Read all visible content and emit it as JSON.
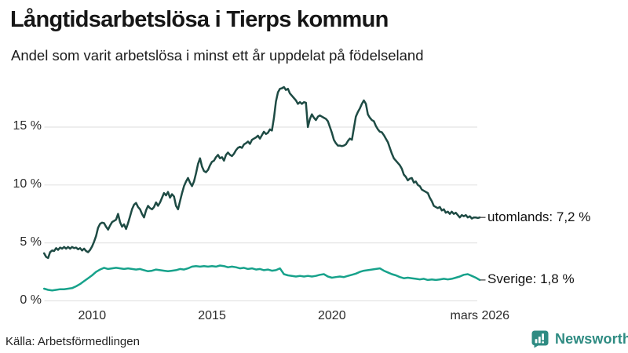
{
  "chart_data": {
    "type": "line",
    "title": "Långtidsarbetslösa i Tierps kommun",
    "subtitle": "Andel som varit arbetslösa i minst ett år uppdelat på födelseland",
    "source": "Källa: Arbetsförmedlingen",
    "grid": "horizontal-only",
    "legend_position": "end-of-line labels, right side",
    "x_axis": {
      "min": 2008.0,
      "max": 2026.17,
      "ticks": [
        {
          "year": 2010,
          "label": "2010"
        },
        {
          "year": 2015,
          "label": "2015"
        },
        {
          "year": 2020,
          "label": "2020"
        },
        {
          "year": 2026.17,
          "label": "mars 2026"
        }
      ]
    },
    "y_axis": {
      "min": 0,
      "max": 18.6,
      "unit": "%",
      "gridline_color": "#e4e4e4",
      "ticks": [
        {
          "value": 0,
          "label": "0 %"
        },
        {
          "value": 5,
          "label": "5 %"
        },
        {
          "value": 10,
          "label": "10 %"
        },
        {
          "value": 15,
          "label": "15 %"
        }
      ]
    },
    "series": [
      {
        "name": "utomlands",
        "end_label": "utomlands: 7,2 %",
        "end_value": 7.2,
        "color": "#1e4b44",
        "start_year": 2008.0,
        "step_years": 0.0833333,
        "values": [
          4.1,
          3.8,
          3.7,
          4.2,
          4.35,
          4.3,
          4.55,
          4.4,
          4.6,
          4.5,
          4.65,
          4.5,
          4.65,
          4.5,
          4.65,
          4.55,
          4.6,
          4.45,
          4.55,
          4.35,
          4.5,
          4.3,
          4.2,
          4.4,
          4.7,
          5.1,
          5.6,
          6.3,
          6.65,
          6.75,
          6.7,
          6.4,
          6.15,
          6.5,
          6.8,
          6.9,
          7.0,
          7.5,
          6.8,
          6.4,
          6.6,
          6.2,
          6.7,
          7.3,
          7.9,
          8.3,
          8.45,
          8.1,
          7.9,
          7.5,
          7.2,
          7.8,
          8.2,
          8.0,
          7.9,
          8.1,
          8.5,
          8.2,
          8.5,
          8.9,
          9.3,
          9.1,
          9.4,
          8.9,
          9.2,
          9.0,
          8.2,
          7.9,
          8.6,
          9.3,
          9.9,
          10.3,
          10.6,
          10.2,
          9.9,
          10.3,
          11.0,
          11.8,
          12.3,
          11.6,
          11.2,
          11.1,
          11.3,
          11.7,
          12.0,
          12.1,
          12.4,
          12.6,
          12.3,
          12.4,
          12.1,
          12.6,
          12.8,
          12.6,
          12.5,
          12.7,
          13.0,
          13.2,
          13.3,
          13.2,
          13.5,
          13.6,
          13.75,
          13.55,
          13.9,
          14.0,
          14.1,
          14.25,
          14.0,
          14.3,
          14.6,
          14.4,
          14.5,
          14.8,
          14.7,
          15.8,
          17.2,
          18.0,
          18.3,
          18.35,
          18.45,
          18.2,
          18.3,
          17.9,
          17.7,
          17.5,
          17.3,
          17.0,
          17.15,
          17.0,
          17.15,
          17.1,
          15.0,
          15.7,
          16.1,
          15.8,
          15.6,
          15.9,
          16.0,
          15.9,
          15.8,
          15.7,
          15.5,
          15.0,
          14.5,
          13.9,
          13.6,
          13.4,
          13.4,
          13.35,
          13.4,
          13.5,
          13.8,
          14.0,
          13.9,
          14.9,
          15.9,
          16.3,
          16.6,
          17.0,
          17.3,
          17.0,
          16.1,
          15.8,
          15.6,
          15.5,
          15.1,
          14.8,
          14.6,
          14.55,
          14.3,
          14.0,
          13.7,
          13.2,
          12.7,
          12.3,
          12.1,
          11.9,
          11.7,
          11.4,
          10.9,
          10.7,
          10.4,
          10.55,
          10.6,
          10.2,
          10.3,
          10.0,
          9.9,
          9.6,
          9.5,
          9.4,
          9.3,
          8.9,
          8.6,
          8.2,
          8.1,
          8.0,
          8.1,
          7.8,
          7.9,
          7.6,
          7.7,
          7.5,
          7.7,
          7.5,
          7.6,
          7.4,
          7.2,
          7.4,
          7.3,
          7.4,
          7.2,
          7.3,
          7.1,
          7.2,
          7.2,
          7.15,
          7.2
        ]
      },
      {
        "name": "Sverige",
        "end_label": "Sverige: 1,8 %",
        "end_value": 1.8,
        "color": "#17a28b",
        "start_year": 2008.0,
        "step_years": 0.1666667,
        "values": [
          1.05,
          0.95,
          0.9,
          0.95,
          1.0,
          1.0,
          1.05,
          1.1,
          1.25,
          1.45,
          1.7,
          1.95,
          2.2,
          2.5,
          2.7,
          2.85,
          2.75,
          2.8,
          2.85,
          2.8,
          2.75,
          2.8,
          2.75,
          2.7,
          2.75,
          2.65,
          2.55,
          2.6,
          2.7,
          2.65,
          2.6,
          2.55,
          2.6,
          2.65,
          2.75,
          2.7,
          2.8,
          2.95,
          3.0,
          2.95,
          3.0,
          2.95,
          3.0,
          2.95,
          3.05,
          3.0,
          2.9,
          2.95,
          2.9,
          2.8,
          2.85,
          2.75,
          2.8,
          2.7,
          2.75,
          2.65,
          2.7,
          2.6,
          2.65,
          2.8,
          2.3,
          2.2,
          2.15,
          2.1,
          2.15,
          2.1,
          2.15,
          2.1,
          2.15,
          2.25,
          2.3,
          2.1,
          2.0,
          2.05,
          2.1,
          2.05,
          2.15,
          2.25,
          2.35,
          2.5,
          2.6,
          2.65,
          2.7,
          2.75,
          2.8,
          2.6,
          2.45,
          2.3,
          2.2,
          2.05,
          1.95,
          2.0,
          1.95,
          1.9,
          1.85,
          1.9,
          1.8,
          1.85,
          1.8,
          1.85,
          1.9,
          1.85,
          1.9,
          2.0,
          2.1,
          2.25,
          2.3,
          2.15,
          2.0,
          1.8
        ]
      }
    ],
    "label_dash_color": "#555555"
  },
  "branding": {
    "logo_text": "Newsworthy",
    "logo_color": "#2e8b82"
  }
}
